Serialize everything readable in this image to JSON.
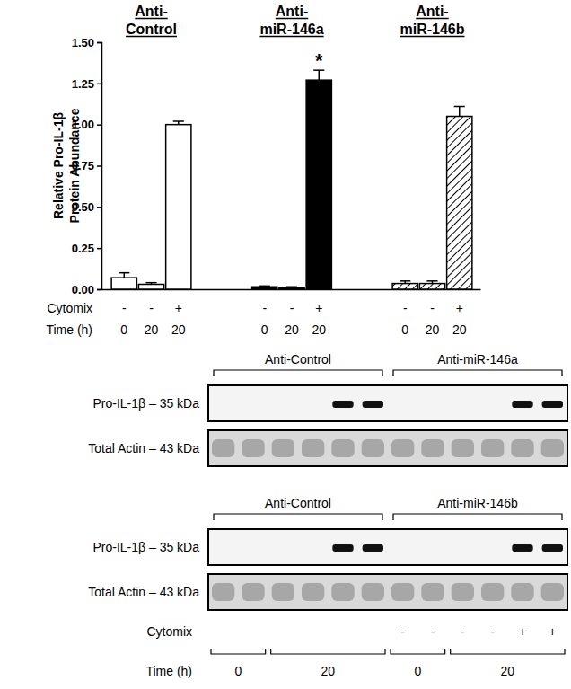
{
  "chart_data": {
    "type": "bar",
    "y_label": [
      "Relative Pro-IL-1β",
      "Protein Abundance"
    ],
    "groups": [
      "Anti-Control",
      "Anti-miR-146a",
      "Anti-miR-146b"
    ],
    "categories": [
      null,
      null,
      null,
      null,
      null,
      null,
      null,
      null,
      null
    ],
    "values": [
      0.07,
      0.03,
      1.0,
      0.015,
      0.01,
      1.27,
      0.035,
      0.035,
      1.05
    ],
    "errors": [
      0.03,
      0.01,
      0.02,
      0.005,
      0.005,
      0.06,
      0.015,
      0.015,
      0.06
    ],
    "colors": [
      "#ffffff",
      "#ffffff",
      "#ffffff",
      "#000000",
      "#000000",
      "#000000",
      "#ffffff",
      "#ffffff",
      "#ffffff"
    ],
    "annotations": [
      {
        "text": "*",
        "index": 5
      }
    ],
    "x_rows": [
      {
        "label": "Cytomix",
        "values": [
          "-",
          "-",
          "+",
          "-",
          "-",
          "+",
          "-",
          "-",
          "+"
        ]
      },
      {
        "label": "Time (h)",
        "values": [
          0,
          20,
          20,
          0,
          20,
          20,
          0,
          20,
          20
        ]
      }
    ],
    "ylim": [
      0,
      1.5
    ],
    "yticks": [
      {
        "value": 0,
        "label": "0.00"
      },
      {
        "value": 0.25,
        "label": "0.25"
      },
      {
        "value": 0.5,
        "label": "0.50"
      },
      {
        "value": 0.75,
        "label": "0.75"
      },
      {
        "value": 1,
        "label": "1.00"
      },
      {
        "value": 1.25,
        "label": "1.25"
      },
      {
        "value": 1.5,
        "label": "1.50"
      }
    ],
    "grid": false
  },
  "blots": {
    "panels": [
      {
        "groups": [
          "Anti-Control",
          "Anti-miR-146a"
        ],
        "rows": [
          "Pro-IL-1β – 35 kDa",
          "Total Actin – 43 kDa"
        ]
      },
      {
        "groups": [
          "Anti-Control",
          "Anti-miR-146b"
        ],
        "rows": [
          "Pro-IL-1β – 35 kDa",
          "Total Actin – 43 kDa"
        ]
      }
    ],
    "cytomix_label": "Cytomix",
    "cytomix": [
      null,
      null,
      null,
      null,
      null,
      null,
      "-",
      "-",
      "-",
      "-",
      "+",
      "+"
    ],
    "time_label": "Time (h)",
    "time": [
      0,
      0,
      20,
      20,
      20,
      20,
      0,
      0,
      20,
      20,
      20,
      20
    ]
  }
}
